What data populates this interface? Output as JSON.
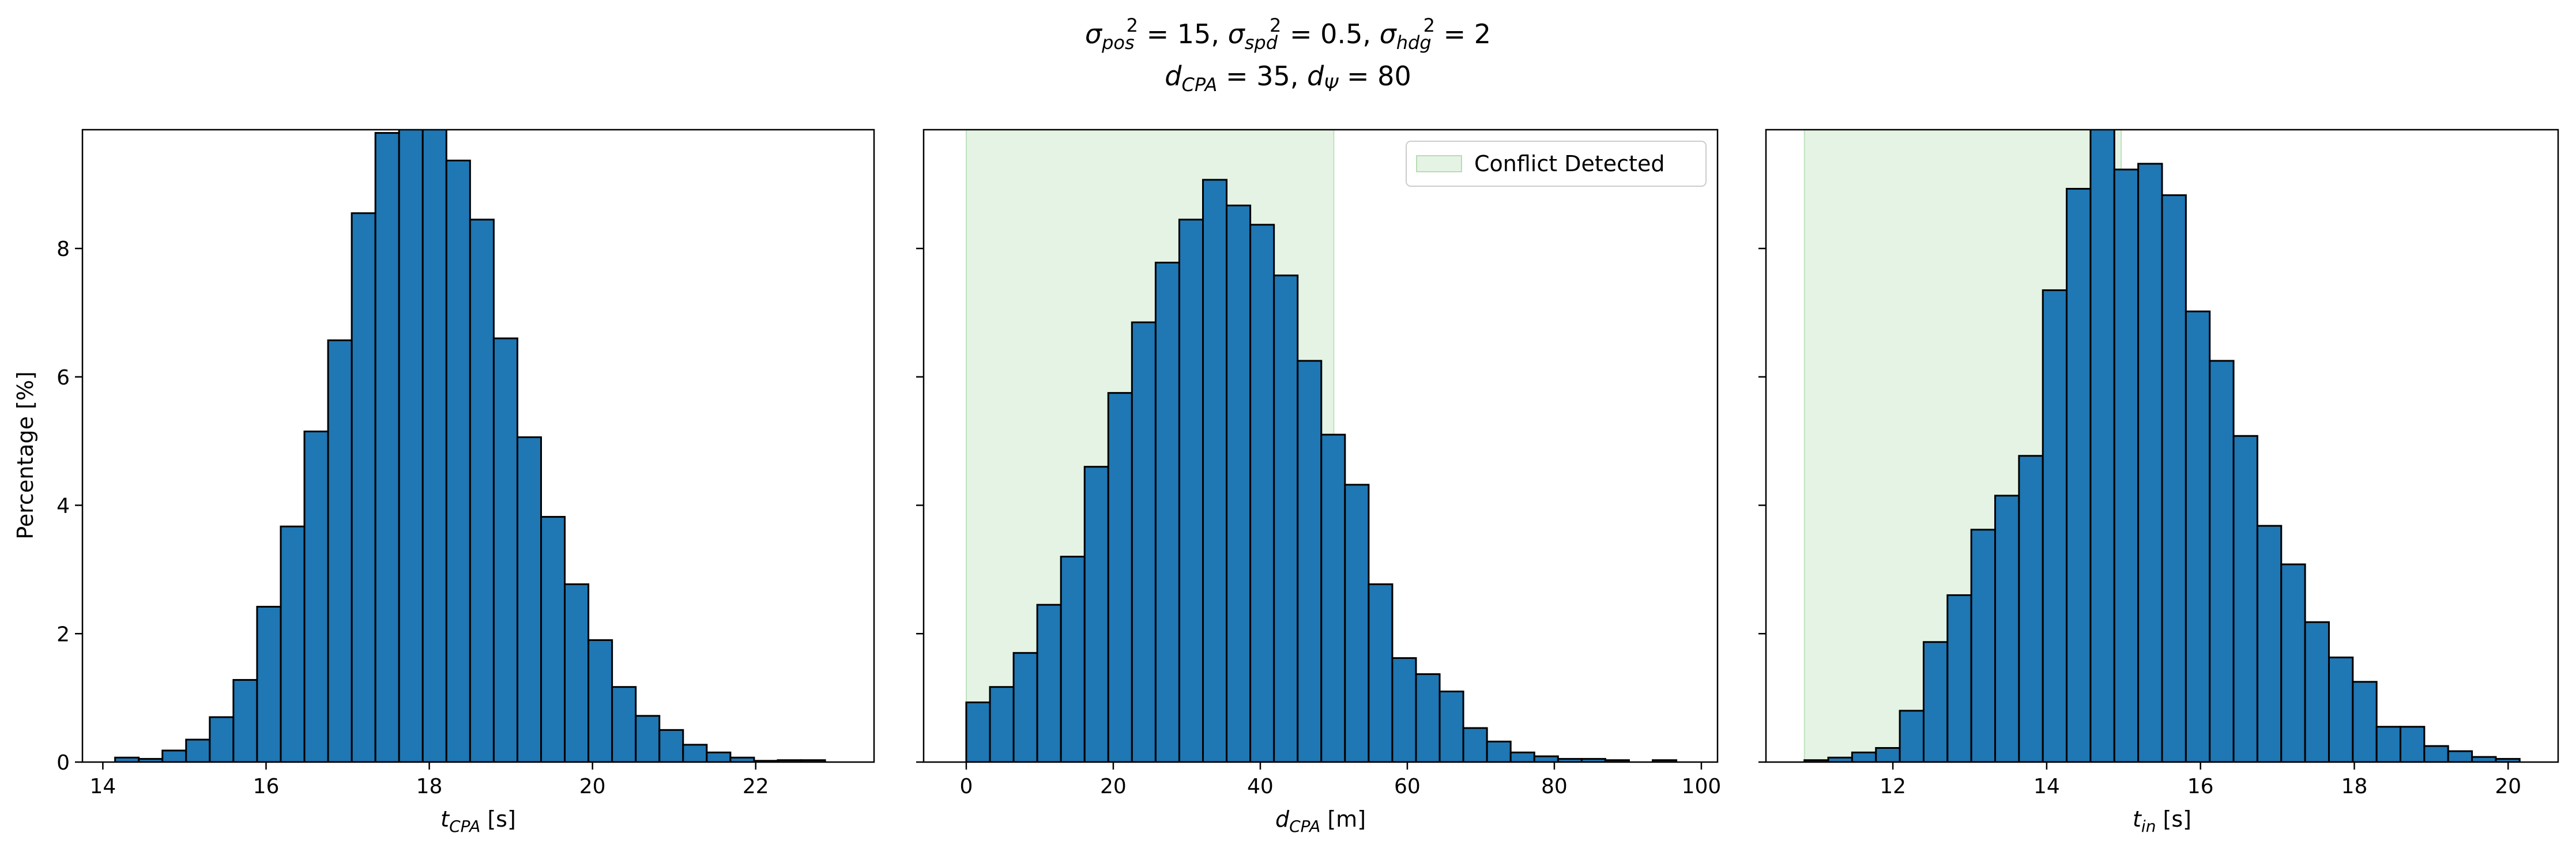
{
  "figure": {
    "title_line1": {
      "segments": [
        {
          "t": "σ",
          "style": "italic"
        },
        {
          "t": "pos",
          "style": "sub"
        },
        {
          "t": "2",
          "style": "supstack"
        },
        {
          "t": " = 15, ",
          "style": "normal"
        },
        {
          "t": "σ",
          "style": "italic"
        },
        {
          "t": "spd",
          "style": "sub"
        },
        {
          "t": "2",
          "style": "supstack"
        },
        {
          "t": " = 0.5, ",
          "style": "normal"
        },
        {
          "t": "σ",
          "style": "italic"
        },
        {
          "t": "hdg",
          "style": "sub"
        },
        {
          "t": "2",
          "style": "supstack"
        },
        {
          "t": " = 2",
          "style": "normal"
        }
      ]
    },
    "title_line2": {
      "segments": [
        {
          "t": "d",
          "style": "italic"
        },
        {
          "t": "CPA",
          "style": "sub"
        },
        {
          "t": " = 35, ",
          "style": "normal"
        },
        {
          "t": "d",
          "style": "italic"
        },
        {
          "t": "Ψ",
          "style": "sub"
        },
        {
          "t": " = 80",
          "style": "normal"
        }
      ]
    },
    "shared_ylabel": "Percentage [%]",
    "ylim": [
      0,
      9.85
    ],
    "yticks": [
      0,
      2,
      4,
      6,
      8
    ],
    "bar_color": "#1f77b4",
    "bar_edge_color": "#000000",
    "highlight_color": "#2ca02c",
    "highlight_alpha": 0.12,
    "legend": {
      "label": "Conflict Detected",
      "placement": "upper right",
      "panel": 1
    }
  },
  "chart_data": [
    {
      "type": "bar",
      "xlabel": {
        "main": "t",
        "sub": "CPA",
        "rest": " [s]"
      },
      "xlim": [
        13.75,
        23.45
      ],
      "xticks": [
        14,
        16,
        18,
        20,
        22
      ],
      "bin_start": 14.15,
      "bin_width": 0.29,
      "values": [
        0.07,
        0.05,
        0.18,
        0.35,
        0.7,
        1.28,
        2.42,
        3.67,
        5.15,
        6.57,
        8.55,
        9.8,
        9.97,
        10.0,
        9.37,
        8.45,
        6.6,
        5.06,
        3.82,
        2.77,
        1.9,
        1.17,
        0.72,
        0.5,
        0.27,
        0.15,
        0.07,
        0.02,
        0.03,
        0.03
      ],
      "highlight": null
    },
    {
      "type": "bar",
      "xlabel": {
        "main": "d",
        "sub": "CPA",
        "rest": " [m]"
      },
      "xlim": [
        -5.8,
        102.2
      ],
      "xticks": [
        0,
        20,
        40,
        60,
        80,
        100
      ],
      "bin_start": 0,
      "bin_width": 3.22,
      "values": [
        0.93,
        1.17,
        1.7,
        2.45,
        3.2,
        4.6,
        5.75,
        6.85,
        7.78,
        8.45,
        9.07,
        8.67,
        8.37,
        7.58,
        6.25,
        5.1,
        4.32,
        2.77,
        1.62,
        1.37,
        1.1,
        0.53,
        0.32,
        0.15,
        0.09,
        0.05,
        0.05,
        0.03,
        0.0,
        0.03
      ],
      "highlight": [
        0,
        50
      ]
    },
    {
      "type": "bar",
      "xlabel": {
        "main": "t",
        "sub": "in",
        "rest": " [s]"
      },
      "xlim": [
        10.35,
        20.65
      ],
      "xticks": [
        12,
        14,
        16,
        18,
        20
      ],
      "bin_start": 10.85,
      "bin_width": 0.31,
      "values": [
        0.03,
        0.07,
        0.15,
        0.22,
        0.8,
        1.87,
        2.6,
        3.62,
        4.15,
        4.77,
        7.35,
        8.93,
        10.0,
        9.23,
        9.32,
        8.83,
        7.02,
        6.25,
        5.08,
        3.68,
        3.08,
        2.18,
        1.63,
        1.25,
        0.55,
        0.55,
        0.25,
        0.17,
        0.08,
        0.05
      ],
      "highlight": [
        10.85,
        14.97
      ]
    }
  ]
}
